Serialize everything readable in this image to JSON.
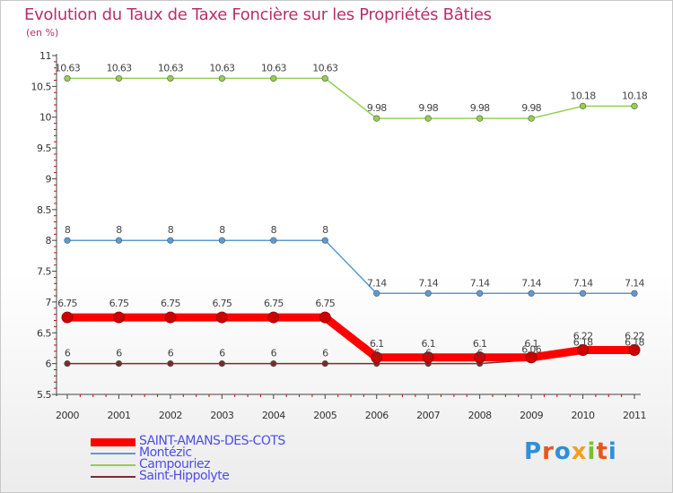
{
  "title": "Evolution du Taux de Taxe Foncière sur les Propriétés Bâties",
  "unit": "(en %)",
  "logo": {
    "text": "Proxiti",
    "colors": [
      "#2f8fd8",
      "#e8561a",
      "#2f8fd8",
      "#f0a020",
      "#78c030",
      "#e8561a",
      "#2f8fd8"
    ]
  },
  "chart_data": {
    "type": "line",
    "title": "Evolution du Taux de Taxe Foncière sur les Propriétés Bâties",
    "ylabel": "(en %)",
    "xlabel": "",
    "x": [
      "2000",
      "2001",
      "2002",
      "2003",
      "2004",
      "2005",
      "2006",
      "2007",
      "2008",
      "2009",
      "2010",
      "2011"
    ],
    "ylim": [
      5.5,
      11
    ],
    "yticks": [
      "5.5",
      "6",
      "6.5",
      "7",
      "7.5",
      "8",
      "8.5",
      "9",
      "9.5",
      "10",
      "10.5",
      "11"
    ],
    "grid": false,
    "legend": "bottom-left",
    "series": [
      {
        "name": "SAINT-AMANS-DES-COTS",
        "color": "#ff0000",
        "values": [
          6.75,
          6.75,
          6.75,
          6.75,
          6.75,
          6.75,
          6.1,
          6.1,
          6.1,
          6.1,
          6.22,
          6.22
        ],
        "labels": [
          "6.75",
          "6.75",
          "6.75",
          "6.75",
          "6.75",
          "6.75",
          "6.1",
          "6.1",
          "6.1",
          "6.1",
          "6.22",
          "6.22"
        ]
      },
      {
        "name": "Montézic",
        "color": "#5b9bd5",
        "values": [
          8,
          8,
          8,
          8,
          8,
          8,
          7.14,
          7.14,
          7.14,
          7.14,
          7.14,
          7.14
        ],
        "labels": [
          "8",
          "8",
          "8",
          "8",
          "8",
          "8",
          "7.14",
          "7.14",
          "7.14",
          "7.14",
          "7.14",
          "7.14"
        ]
      },
      {
        "name": "Campouriez",
        "color": "#92d050",
        "values": [
          10.63,
          10.63,
          10.63,
          10.63,
          10.63,
          10.63,
          9.98,
          9.98,
          9.98,
          9.98,
          10.18,
          10.18
        ],
        "labels": [
          "10.63",
          "10.63",
          "10.63",
          "10.63",
          "10.63",
          "10.63",
          "9.98",
          "9.98",
          "9.98",
          "9.98",
          "10.18",
          "10.18"
        ]
      },
      {
        "name": "Saint-Hippolyte",
        "color": "#7b2c2c",
        "values": [
          6,
          6,
          6,
          6,
          6,
          6,
          6,
          6,
          6,
          6.06,
          6.18,
          6.18
        ],
        "labels": [
          "6",
          "6",
          "6",
          "6",
          "6",
          "6",
          "6",
          "6",
          "6",
          "6.06",
          "6.18",
          "6.18"
        ]
      }
    ]
  }
}
